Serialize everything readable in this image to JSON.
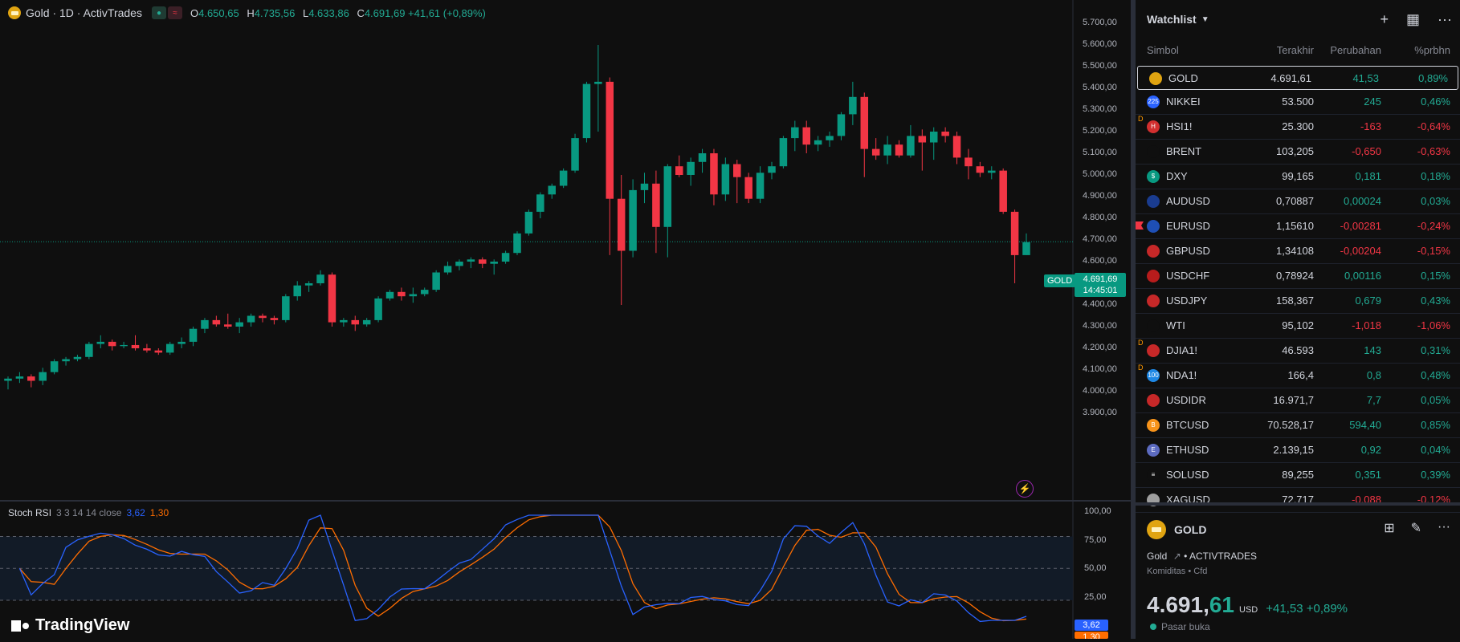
{
  "header": {
    "symbol_title": "Gold · 1D · ActivTrades",
    "o_label": "O",
    "o_value": "4.650,65",
    "h_label": "H",
    "h_value": "4.735,56",
    "l_label": "L",
    "l_value": "4.633,86",
    "c_label": "C",
    "c_value": "4.691,69 +41,61 (+0,89%)"
  },
  "price_axis": [
    "5.700,00",
    "5.600,00",
    "5.500,00",
    "5.400,00",
    "5.300,00",
    "5.200,00",
    "5.100,00",
    "5.000,00",
    "4.900,00",
    "4.800,00",
    "4.700,00",
    "4.600,00",
    "4.500,00",
    "4.400,00",
    "4.300,00",
    "4.200,00",
    "4.100,00",
    "4.000,00",
    "3.900,00"
  ],
  "last_price": {
    "symbol_tag": "GOLD",
    "price": "4.691,69",
    "countdown": "14:45:01"
  },
  "stoch": {
    "name": "Stoch RSI",
    "params": "3 3 14 14 close",
    "k_value": "3,62",
    "d_value": "1,30",
    "axis": [
      "100,00",
      "75,00",
      "50,00",
      "25,00"
    ]
  },
  "branding": "TradingView",
  "chart_data": {
    "type": "candlestick",
    "y_unit": "USD",
    "ylim": [
      3850,
      5750
    ],
    "candles": [
      [
        4050,
        4070,
        4010,
        4060
      ],
      [
        4060,
        4090,
        4040,
        4070
      ],
      [
        4070,
        4080,
        4020,
        4050
      ],
      [
        4050,
        4110,
        4030,
        4090
      ],
      [
        4090,
        4150,
        4080,
        4140
      ],
      [
        4140,
        4160,
        4120,
        4150
      ],
      [
        4150,
        4170,
        4140,
        4160
      ],
      [
        4160,
        4230,
        4150,
        4220
      ],
      [
        4220,
        4260,
        4200,
        4230
      ],
      [
        4230,
        4240,
        4190,
        4210
      ],
      [
        4210,
        4230,
        4200,
        4215
      ],
      [
        4215,
        4260,
        4190,
        4200
      ],
      [
        4200,
        4220,
        4180,
        4190
      ],
      [
        4190,
        4200,
        4170,
        4180
      ],
      [
        4180,
        4230,
        4170,
        4220
      ],
      [
        4220,
        4250,
        4200,
        4230
      ],
      [
        4230,
        4300,
        4210,
        4290
      ],
      [
        4290,
        4340,
        4270,
        4330
      ],
      [
        4330,
        4350,
        4300,
        4310
      ],
      [
        4310,
        4360,
        4290,
        4300
      ],
      [
        4300,
        4340,
        4270,
        4320
      ],
      [
        4320,
        4360,
        4300,
        4350
      ],
      [
        4350,
        4360,
        4320,
        4340
      ],
      [
        4340,
        4350,
        4310,
        4330
      ],
      [
        4330,
        4450,
        4320,
        4440
      ],
      [
        4440,
        4510,
        4420,
        4490
      ],
      [
        4490,
        4510,
        4460,
        4500
      ],
      [
        4500,
        4560,
        4490,
        4540
      ],
      [
        4540,
        4550,
        4300,
        4320
      ],
      [
        4320,
        4340,
        4300,
        4330
      ],
      [
        4330,
        4350,
        4280,
        4310
      ],
      [
        4310,
        4340,
        4300,
        4330
      ],
      [
        4330,
        4440,
        4320,
        4430
      ],
      [
        4430,
        4470,
        4420,
        4460
      ],
      [
        4460,
        4480,
        4420,
        4440
      ],
      [
        4440,
        4480,
        4410,
        4450
      ],
      [
        4450,
        4480,
        4440,
        4470
      ],
      [
        4470,
        4560,
        4460,
        4550
      ],
      [
        4550,
        4600,
        4540,
        4580
      ],
      [
        4580,
        4610,
        4560,
        4600
      ],
      [
        4600,
        4620,
        4570,
        4610
      ],
      [
        4610,
        4620,
        4570,
        4590
      ],
      [
        4590,
        4610,
        4540,
        4600
      ],
      [
        4600,
        4650,
        4590,
        4640
      ],
      [
        4640,
        4740,
        4630,
        4730
      ],
      [
        4730,
        4840,
        4720,
        4830
      ],
      [
        4830,
        4920,
        4800,
        4910
      ],
      [
        4910,
        4960,
        4890,
        4950
      ],
      [
        4950,
        5030,
        4940,
        5020
      ],
      [
        5020,
        5190,
        5010,
        5170
      ],
      [
        5170,
        5430,
        5150,
        5420
      ],
      [
        5420,
        5600,
        5200,
        5430
      ],
      [
        5430,
        5450,
        4630,
        4890
      ],
      [
        4890,
        5000,
        4400,
        4650
      ],
      [
        4650,
        4980,
        4620,
        4930
      ],
      [
        4930,
        5010,
        4870,
        4960
      ],
      [
        4960,
        5020,
        4640,
        4760
      ],
      [
        4760,
        5050,
        4620,
        5040
      ],
      [
        5040,
        5090,
        4990,
        5000
      ],
      [
        5000,
        5080,
        4950,
        5060
      ],
      [
        5060,
        5120,
        5010,
        5100
      ],
      [
        5100,
        5120,
        4860,
        4910
      ],
      [
        4910,
        5080,
        4880,
        5050
      ],
      [
        5050,
        5070,
        4870,
        4990
      ],
      [
        4990,
        5010,
        4870,
        4890
      ],
      [
        4890,
        5040,
        4870,
        5010
      ],
      [
        5010,
        5060,
        4980,
        5040
      ],
      [
        5040,
        5180,
        5030,
        5170
      ],
      [
        5170,
        5250,
        5110,
        5220
      ],
      [
        5220,
        5250,
        5100,
        5140
      ],
      [
        5140,
        5180,
        5110,
        5160
      ],
      [
        5160,
        5200,
        5130,
        5180
      ],
      [
        5180,
        5290,
        5160,
        5280
      ],
      [
        5280,
        5430,
        5230,
        5360
      ],
      [
        5360,
        5380,
        4990,
        5120
      ],
      [
        5120,
        5170,
        5070,
        5090
      ],
      [
        5090,
        5180,
        5050,
        5140
      ],
      [
        5140,
        5160,
        5080,
        5090
      ],
      [
        5090,
        5230,
        5080,
        5180
      ],
      [
        5180,
        5210,
        5020,
        5150
      ],
      [
        5150,
        5220,
        5070,
        5200
      ],
      [
        5200,
        5220,
        5150,
        5180
      ],
      [
        5180,
        5200,
        5050,
        5080
      ],
      [
        5080,
        5120,
        4980,
        5040
      ],
      [
        5040,
        5060,
        4990,
        5010
      ],
      [
        5010,
        5040,
        4980,
        5020
      ],
      [
        5020,
        5030,
        4820,
        4830
      ],
      [
        4830,
        4840,
        4500,
        4630
      ],
      [
        4630,
        4730,
        4630,
        4690
      ]
    ]
  },
  "watchlist": {
    "title": "Watchlist",
    "columns": {
      "symbol": "Simbol",
      "last": "Terakhir",
      "change": "Perubahan",
      "pct": "%prbhn"
    },
    "rows": [
      {
        "sym": "GOLD",
        "mark": "",
        "last": "4.691,61",
        "chg": "41,53",
        "pct": "0,89%",
        "dir": "pos",
        "icon_color": "#e0a411",
        "icon_text": ""
      },
      {
        "sym": "NIKKEI",
        "mark": "",
        "last": "53.500",
        "chg": "245",
        "pct": "0,46%",
        "dir": "pos",
        "icon_color": "#2962ff",
        "icon_text": "225"
      },
      {
        "sym": "HSI1!",
        "mark": "D",
        "last": "25.300",
        "chg": "-163",
        "pct": "-0,64%",
        "dir": "neg",
        "icon_color": "#d32f2f",
        "icon_text": "H"
      },
      {
        "sym": "BRENT",
        "mark": "",
        "last": "103,205",
        "chg": "-0,650",
        "pct": "-0,63%",
        "dir": "neg",
        "icon_color": "#0f0f0f",
        "icon_text": ""
      },
      {
        "sym": "DXY",
        "mark": "",
        "last": "99,165",
        "chg": "0,181",
        "pct": "0,18%",
        "dir": "pos",
        "icon_color": "#089981",
        "icon_text": "$"
      },
      {
        "sym": "AUDUSD",
        "mark": "",
        "last": "0,70887",
        "chg": "0,00024",
        "pct": "0,03%",
        "dir": "pos",
        "icon_color": "#1a3c8f",
        "icon_text": ""
      },
      {
        "sym": "EURUSD",
        "mark": "",
        "last": "1,15610",
        "chg": "-0,00281",
        "pct": "-0,24%",
        "dir": "neg",
        "icon_color": "#1e4fb5",
        "icon_text": ""
      },
      {
        "sym": "GBPUSD",
        "mark": "",
        "last": "1,34108",
        "chg": "-0,00204",
        "pct": "-0,15%",
        "dir": "neg",
        "icon_color": "#c62828",
        "icon_text": ""
      },
      {
        "sym": "USDCHF",
        "mark": "",
        "last": "0,78924",
        "chg": "0,00116",
        "pct": "0,15%",
        "dir": "pos",
        "icon_color": "#b71c1c",
        "icon_text": ""
      },
      {
        "sym": "USDJPY",
        "mark": "",
        "last": "158,367",
        "chg": "0,679",
        "pct": "0,43%",
        "dir": "pos",
        "icon_color": "#c62828",
        "icon_text": ""
      },
      {
        "sym": "WTI",
        "mark": "",
        "last": "95,102",
        "chg": "-1,018",
        "pct": "-1,06%",
        "dir": "neg",
        "icon_color": "#0f0f0f",
        "icon_text": ""
      },
      {
        "sym": "DJIA1!",
        "mark": "D",
        "last": "46.593",
        "chg": "143",
        "pct": "0,31%",
        "dir": "pos",
        "icon_color": "#c62828",
        "icon_text": ""
      },
      {
        "sym": "NDA1!",
        "mark": "D",
        "last": "166,4",
        "chg": "0,8",
        "pct": "0,48%",
        "dir": "pos",
        "icon_color": "#1e88e5",
        "icon_text": "100"
      },
      {
        "sym": "USDIDR",
        "mark": "",
        "last": "16.971,7",
        "chg": "7,7",
        "pct": "0,05%",
        "dir": "pos",
        "icon_color": "#c62828",
        "icon_text": ""
      },
      {
        "sym": "BTCUSD",
        "mark": "",
        "last": "70.528,17",
        "chg": "594,40",
        "pct": "0,85%",
        "dir": "pos",
        "icon_color": "#f7931a",
        "icon_text": "B"
      },
      {
        "sym": "ETHUSD",
        "mark": "",
        "last": "2.139,15",
        "chg": "0,92",
        "pct": "0,04%",
        "dir": "pos",
        "icon_color": "#5c6bc0",
        "icon_text": "E"
      },
      {
        "sym": "SOLUSD",
        "mark": "",
        "last": "89,255",
        "chg": "0,351",
        "pct": "0,39%",
        "dir": "pos",
        "icon_color": "#0f0f0f",
        "icon_text": "≡"
      },
      {
        "sym": "XAGUSD",
        "mark": "",
        "last": "72,717",
        "chg": "-0,088",
        "pct": "-0,12%",
        "dir": "neg",
        "icon_color": "#9e9e9e",
        "icon_text": ""
      }
    ]
  },
  "details": {
    "symbol": "GOLD",
    "name": "Gold",
    "exchange": "ACTIVTRADES",
    "meta": "Komiditas • Cfd",
    "price_main": "4.691,",
    "price_tail": "61",
    "currency": "USD",
    "change": "+41,53 +0,89%",
    "market_status": "Pasar buka"
  },
  "colors": {
    "up": "#089981",
    "down": "#f23645",
    "stoch_k": "#2962ff",
    "stoch_d": "#ff6d00"
  }
}
